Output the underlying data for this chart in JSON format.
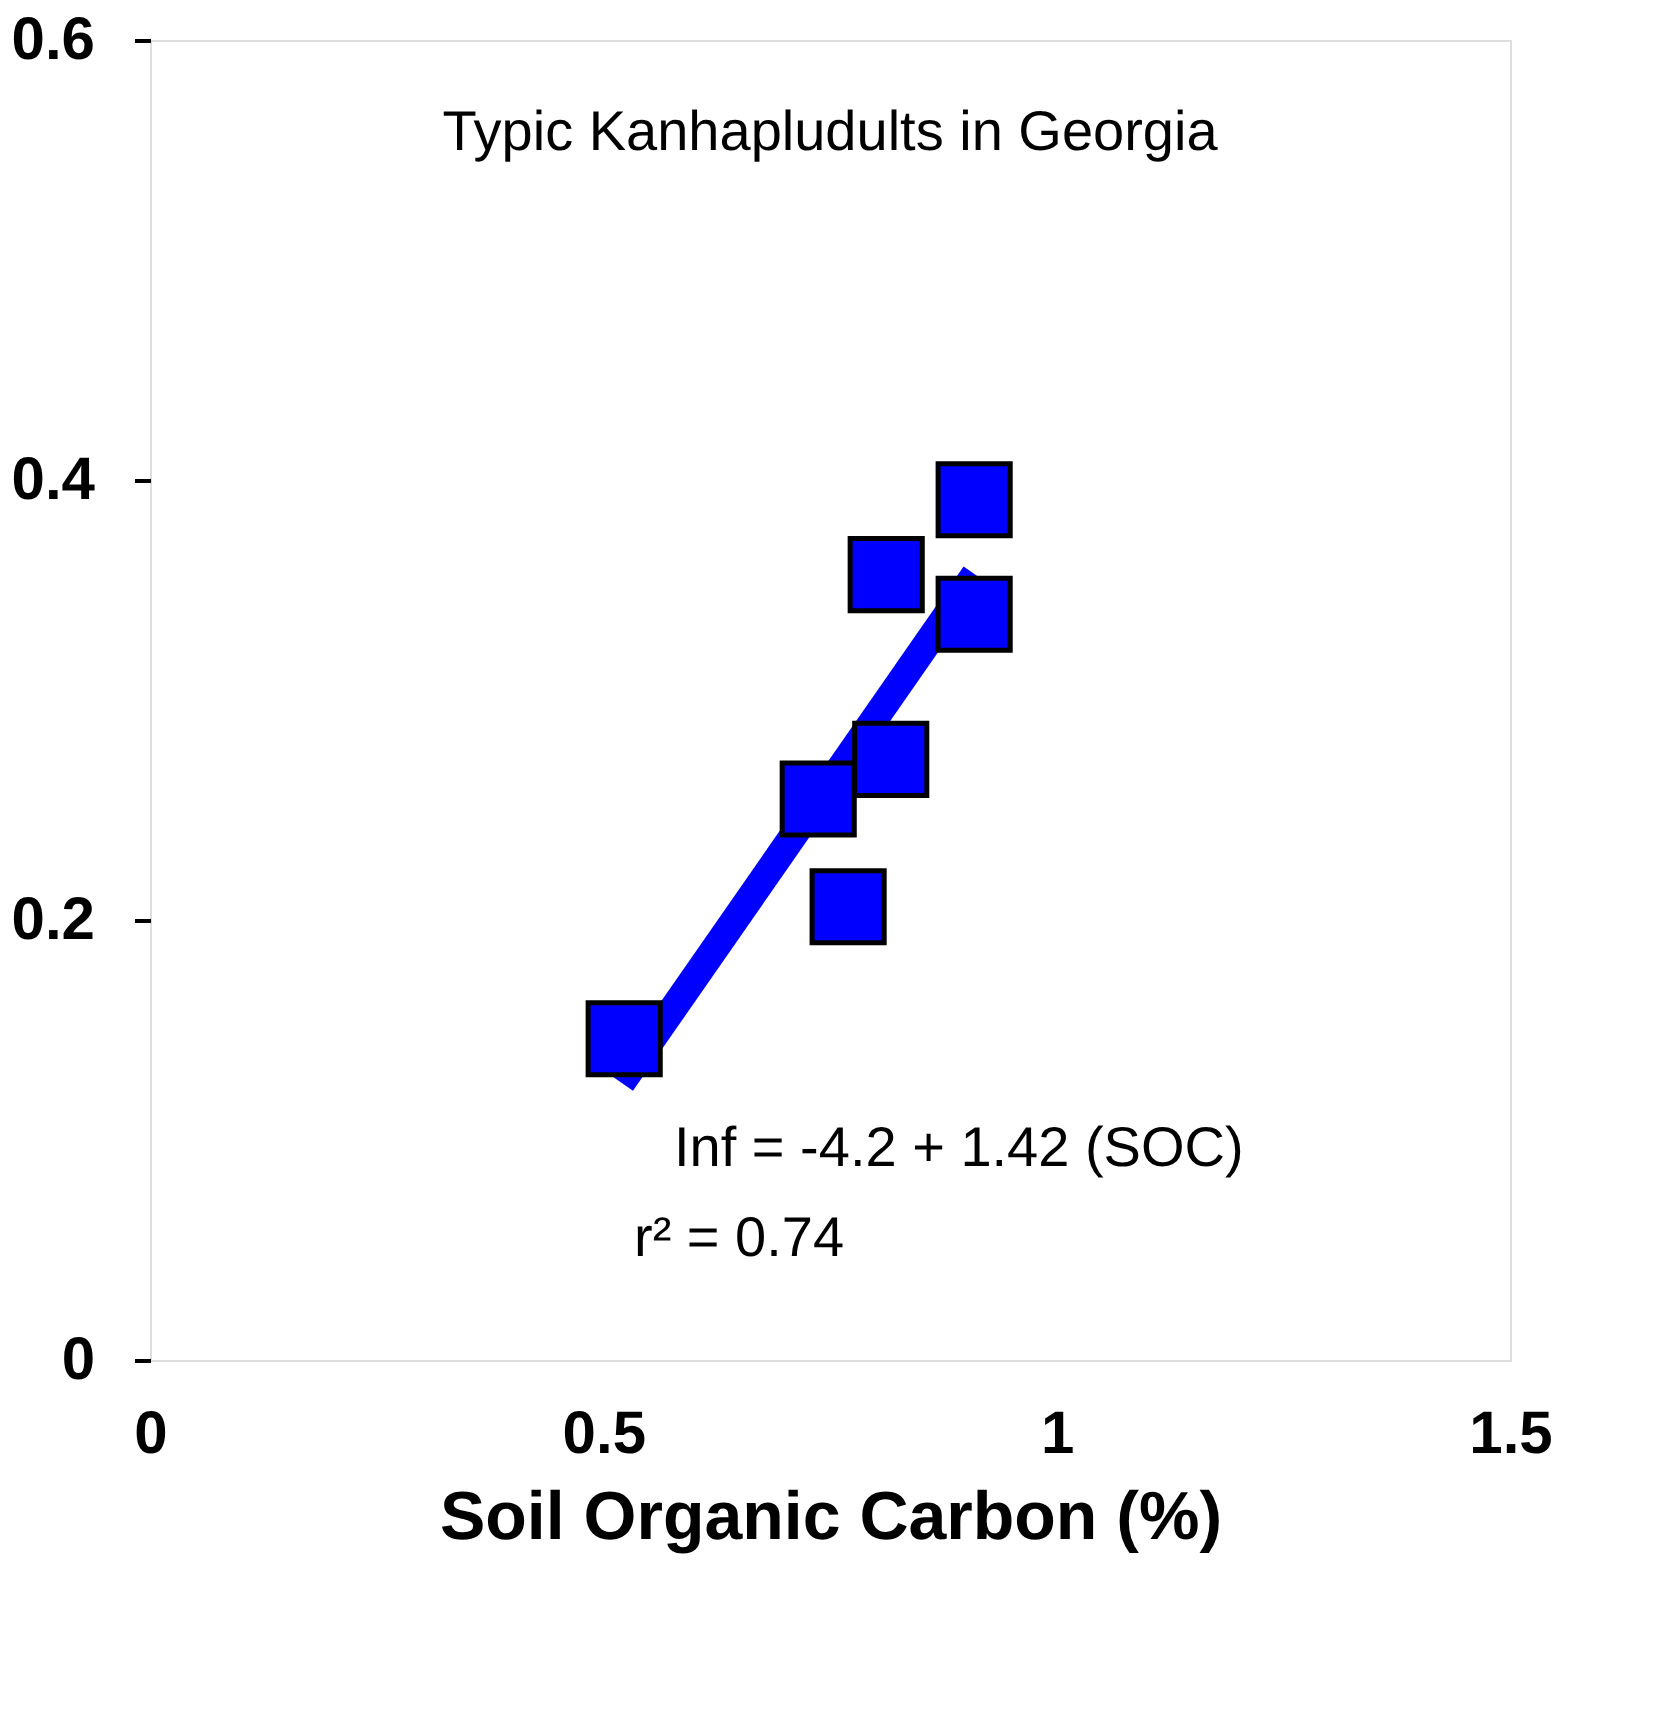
{
  "chart_data": {
    "type": "scatter",
    "xlabel": "Soil Organic Carbon (%)",
    "marker": "square",
    "xlim": [
      0,
      1.5
    ],
    "xticks": [
      0,
      0.5,
      1,
      1.5
    ],
    "ylim": [
      0,
      0.6
    ],
    "yticks": [
      0,
      0.2,
      0.4,
      0.6
    ],
    "grid": false,
    "series": [
      {
        "type": "line",
        "marker": "none",
        "color": "#0000ff",
        "x": [
          0.52,
          0.91
        ],
        "values": [
          0.126,
          0.357
        ]
      },
      {
        "color": "#0000ff",
        "x": [
          0.523,
          0.737,
          0.77,
          0.817,
          0.812,
          0.909,
          0.909
        ],
        "values": [
          0.146,
          0.255,
          0.206,
          0.273,
          0.357,
          0.339,
          0.391
        ]
      }
    ],
    "annotations": [
      "Typic Kanhapludults in Georgia",
      "Inf = -4.2 + 1.42 (SOC)",
      "r² = 0.74"
    ]
  }
}
